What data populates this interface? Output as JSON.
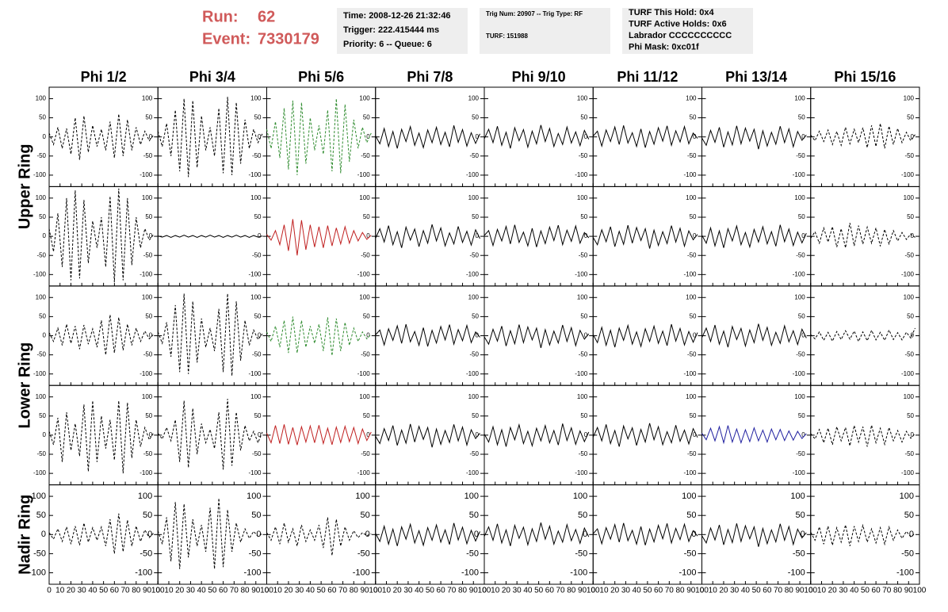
{
  "header": {
    "run_label": "Run:",
    "run": "62",
    "event_label": "Event:",
    "event": "7330179",
    "box1": [
      "Time: 2008-12-26 21:32:46",
      "Trigger: 222.415444 ms",
      "Priority: 6 -- Queue: 6"
    ],
    "box2": [
      "Trig Num: 20907 -- Trig Type: RF",
      "TURF: 151988"
    ],
    "box3": [
      "TURF This Hold: 0x4",
      "TURF Active Holds: 0x6",
      "Labrador CCCCCCCCCC",
      "Phi Mask: 0xc01f"
    ]
  },
  "columns": [
    "Phi 1/2",
    "Phi 3/4",
    "Phi 5/6",
    "Phi 7/8",
    "Phi 9/10",
    "Phi 11/12",
    "Phi 13/14",
    "Phi 15/16"
  ],
  "rings": [
    "Upper Ring",
    "Lower Ring",
    "Nadir Ring"
  ],
  "xlim": [
    0,
    100
  ],
  "ylim": [
    -130,
    130
  ],
  "xticks": [
    0,
    10,
    20,
    30,
    40,
    50,
    60,
    70,
    80,
    90,
    100
  ],
  "yticks": [
    -100,
    -50,
    0,
    50,
    100
  ],
  "x": [
    0,
    4,
    8,
    12,
    16,
    20,
    24,
    28,
    32,
    36,
    40,
    44,
    48,
    52,
    56,
    60,
    64,
    68,
    72,
    76,
    80,
    84,
    88,
    92,
    96
  ],
  "panels": [
    [
      {
        "color": "#000000",
        "dashed": true,
        "values": [
          10,
          -20,
          25,
          -30,
          22,
          -45,
          50,
          -60,
          55,
          -40,
          30,
          -25,
          20,
          -35,
          40,
          -55,
          60,
          -50,
          45,
          -35,
          25,
          -20,
          15,
          -10,
          5
        ]
      },
      {
        "color": "#000000",
        "dashed": true,
        "values": [
          15,
          -25,
          35,
          -50,
          70,
          -90,
          100,
          -105,
          95,
          -80,
          55,
          -35,
          25,
          -50,
          75,
          -95,
          105,
          -100,
          90,
          -70,
          45,
          -30,
          20,
          -15,
          8
        ]
      },
      {
        "color": "#2e8b2e",
        "dashed": true,
        "values": [
          20,
          -30,
          40,
          -55,
          75,
          -85,
          95,
          -100,
          90,
          -70,
          50,
          -35,
          30,
          -45,
          70,
          -90,
          100,
          -95,
          85,
          -65,
          45,
          -30,
          25,
          -15,
          10
        ]
      },
      {
        "color": "#000000",
        "dashed": false,
        "values": [
          3,
          -18,
          22,
          -25,
          14,
          -30,
          20,
          -12,
          27,
          -22,
          10,
          -28,
          18,
          -15,
          25,
          -20,
          12,
          -26,
          30,
          -14,
          19,
          -24,
          11,
          -17,
          8
        ]
      },
      {
        "color": "#000000",
        "dashed": false,
        "values": [
          -5,
          20,
          -15,
          28,
          -22,
          12,
          -30,
          24,
          -10,
          19,
          -27,
          15,
          -18,
          31,
          -12,
          22,
          -25,
          9,
          -20,
          26,
          -16,
          13,
          -23,
          17,
          -6
        ]
      },
      {
        "color": "#000000",
        "dashed": false,
        "values": [
          2,
          15,
          -24,
          18,
          -12,
          26,
          -20,
          30,
          -16,
          11,
          -25,
          21,
          -28,
          14,
          -19,
          24,
          -11,
          29,
          -22,
          16,
          -13,
          27,
          -18,
          10,
          -4
        ]
      },
      {
        "color": "#000000",
        "dashed": false,
        "values": [
          -3,
          -22,
          17,
          -14,
          25,
          -27,
          13,
          -21,
          29,
          -18,
          23,
          -11,
          20,
          -32,
          16,
          -24,
          12,
          -19,
          28,
          -15,
          21,
          -26,
          14,
          -9,
          5
        ]
      },
      {
        "color": "#000000",
        "dashed": true,
        "values": [
          5,
          -10,
          15,
          -12,
          18,
          -20,
          14,
          -22,
          25,
          -18,
          20,
          -15,
          24,
          -28,
          30,
          -25,
          35,
          -30,
          28,
          -20,
          22,
          -15,
          12,
          -10,
          6
        ]
      }
    ],
    [
      {
        "color": "#000000",
        "dashed": true,
        "values": [
          20,
          -40,
          60,
          -80,
          100,
          -115,
          120,
          -110,
          95,
          -70,
          40,
          -30,
          50,
          -80,
          105,
          -120,
          125,
          -115,
          100,
          -75,
          50,
          -30,
          20,
          -10,
          5
        ]
      },
      {
        "color": "#000000",
        "dashed": false,
        "values": [
          1,
          -2,
          2,
          -3,
          2,
          -2,
          3,
          -2,
          2,
          -3,
          2,
          -2,
          3,
          -2,
          2,
          -3,
          2,
          -2,
          3,
          -2,
          2,
          -3,
          2,
          -2,
          1
        ]
      },
      {
        "color": "#c02020",
        "dashed": false,
        "values": [
          5,
          -10,
          15,
          -22,
          30,
          -38,
          45,
          -50,
          42,
          -35,
          30,
          -28,
          25,
          -30,
          28,
          -25,
          22,
          -20,
          25,
          -18,
          15,
          -12,
          10,
          -8,
          3
        ]
      },
      {
        "color": "#000000",
        "dashed": false,
        "values": [
          -5,
          20,
          -15,
          28,
          -22,
          12,
          -30,
          24,
          -10,
          19,
          -27,
          15,
          -18,
          31,
          -12,
          22,
          -25,
          9,
          -20,
          26,
          -16,
          13,
          -23,
          17,
          -6
        ]
      },
      {
        "color": "#000000",
        "dashed": false,
        "values": [
          2,
          15,
          -24,
          18,
          -12,
          26,
          -20,
          30,
          -16,
          11,
          -25,
          21,
          -28,
          14,
          -19,
          24,
          -11,
          29,
          -22,
          16,
          -13,
          27,
          -18,
          10,
          -4
        ]
      },
      {
        "color": "#000000",
        "dashed": false,
        "values": [
          -3,
          -22,
          17,
          -14,
          25,
          -27,
          13,
          -21,
          29,
          -18,
          23,
          -11,
          20,
          -32,
          16,
          -24,
          12,
          -19,
          28,
          -15,
          21,
          -26,
          14,
          -9,
          5
        ]
      },
      {
        "color": "#000000",
        "dashed": false,
        "values": [
          3,
          -18,
          22,
          -25,
          14,
          -30,
          20,
          -12,
          27,
          -22,
          10,
          -28,
          18,
          -15,
          25,
          -20,
          12,
          -26,
          30,
          -14,
          19,
          -24,
          11,
          -17,
          8
        ]
      },
      {
        "color": "#000000",
        "dashed": true,
        "values": [
          -5,
          12,
          -18,
          22,
          -15,
          25,
          -28,
          20,
          -30,
          35,
          -25,
          28,
          -20,
          24,
          -18,
          22,
          -26,
          18,
          -20,
          15,
          -12,
          10,
          -8,
          6,
          -3
        ]
      }
    ],
    [
      {
        "color": "#000000",
        "dashed": true,
        "values": [
          8,
          -15,
          20,
          -25,
          30,
          -20,
          25,
          -35,
          28,
          -22,
          18,
          -30,
          40,
          -50,
          55,
          -45,
          48,
          -38,
          30,
          -25,
          20,
          -15,
          12,
          -8,
          4
        ]
      },
      {
        "color": "#000000",
        "dashed": true,
        "values": [
          10,
          -20,
          35,
          -55,
          80,
          -95,
          110,
          -100,
          90,
          -70,
          45,
          -30,
          20,
          -40,
          70,
          -95,
          110,
          -105,
          90,
          -65,
          40,
          -25,
          15,
          -10,
          5
        ]
      },
      {
        "color": "#2e8b2e",
        "dashed": true,
        "values": [
          10,
          -15,
          25,
          -30,
          40,
          -45,
          50,
          -45,
          40,
          -30,
          25,
          -20,
          30,
          -40,
          48,
          -52,
          45,
          -40,
          35,
          -25,
          20,
          -15,
          10,
          -8,
          4
        ]
      },
      {
        "color": "#000000",
        "dashed": false,
        "values": [
          2,
          15,
          -24,
          18,
          -12,
          26,
          -20,
          30,
          -16,
          11,
          -25,
          21,
          -28,
          14,
          -19,
          24,
          -11,
          29,
          -22,
          16,
          -13,
          27,
          -18,
          10,
          -4
        ]
      },
      {
        "color": "#000000",
        "dashed": false,
        "values": [
          -3,
          -22,
          17,
          -14,
          25,
          -27,
          13,
          -21,
          29,
          -18,
          23,
          -11,
          20,
          -32,
          16,
          -24,
          12,
          -19,
          28,
          -15,
          21,
          -26,
          14,
          -9,
          5
        ]
      },
      {
        "color": "#000000",
        "dashed": false,
        "values": [
          3,
          -18,
          22,
          -25,
          14,
          -30,
          20,
          -12,
          27,
          -22,
          10,
          -28,
          18,
          -15,
          25,
          -20,
          12,
          -26,
          30,
          -14,
          19,
          -24,
          11,
          -17,
          8
        ]
      },
      {
        "color": "#000000",
        "dashed": false,
        "values": [
          -5,
          20,
          -15,
          28,
          -22,
          12,
          -30,
          24,
          -10,
          19,
          -27,
          15,
          -18,
          31,
          -12,
          22,
          -25,
          9,
          -20,
          26,
          -16,
          13,
          -23,
          17,
          -6
        ]
      },
      {
        "color": "#000000",
        "dashed": true,
        "values": [
          3,
          -8,
          10,
          -12,
          9,
          -14,
          11,
          -10,
          13,
          -9,
          12,
          -15,
          10,
          -13,
          14,
          -11,
          9,
          -12,
          15,
          -10,
          8,
          -11,
          9,
          -6,
          20
        ]
      }
    ],
    [
      {
        "color": "#000000",
        "dashed": true,
        "values": [
          10,
          -25,
          45,
          -70,
          60,
          -40,
          30,
          -55,
          80,
          -95,
          90,
          -70,
          50,
          -35,
          40,
          -65,
          90,
          -100,
          85,
          -60,
          40,
          -30,
          20,
          -12,
          6
        ]
      },
      {
        "color": "#000000",
        "dashed": true,
        "values": [
          5,
          -10,
          20,
          -15,
          40,
          -70,
          90,
          -85,
          70,
          -50,
          30,
          -20,
          15,
          -35,
          60,
          -90,
          95,
          -80,
          60,
          -40,
          25,
          -15,
          10,
          -20,
          8
        ]
      },
      {
        "color": "#c02020",
        "dashed": false,
        "values": [
          5,
          -20,
          25,
          -22,
          28,
          -24,
          20,
          -26,
          22,
          -18,
          24,
          -20,
          26,
          -22,
          18,
          -25,
          21,
          -19,
          23,
          -17,
          20,
          -22,
          16,
          -14,
          8
        ]
      },
      {
        "color": "#000000",
        "dashed": false,
        "values": [
          -3,
          -22,
          17,
          -14,
          25,
          -27,
          13,
          -21,
          29,
          -18,
          23,
          -11,
          20,
          -32,
          16,
          -24,
          12,
          -19,
          28,
          -15,
          21,
          -26,
          14,
          -9,
          5
        ]
      },
      {
        "color": "#000000",
        "dashed": false,
        "values": [
          3,
          -18,
          22,
          -25,
          14,
          -30,
          20,
          -12,
          27,
          -22,
          10,
          -28,
          18,
          -15,
          25,
          -20,
          12,
          -26,
          30,
          -14,
          19,
          -24,
          11,
          -17,
          8
        ]
      },
      {
        "color": "#000000",
        "dashed": false,
        "values": [
          -5,
          20,
          -15,
          28,
          -22,
          12,
          -30,
          24,
          -10,
          19,
          -27,
          15,
          -18,
          31,
          -12,
          22,
          -25,
          9,
          -20,
          26,
          -16,
          13,
          -23,
          17,
          -6
        ]
      },
      {
        "color": "#2020a0",
        "dashed": false,
        "values": [
          5,
          -12,
          18,
          -15,
          22,
          -20,
          25,
          -18,
          16,
          -20,
          14,
          -17,
          19,
          -15,
          13,
          -18,
          16,
          -12,
          15,
          -14,
          11,
          -13,
          10,
          -9,
          4
        ]
      },
      {
        "color": "#000000",
        "dashed": true,
        "values": [
          4,
          -10,
          15,
          -20,
          18,
          -25,
          22,
          -15,
          20,
          -28,
          25,
          -18,
          22,
          -30,
          26,
          -20,
          18,
          -24,
          20,
          -15,
          12,
          -18,
          10,
          -8,
          4
        ]
      }
    ],
    [
      {
        "color": "#000000",
        "dashed": true,
        "values": [
          5,
          -12,
          15,
          -18,
          20,
          -25,
          22,
          -28,
          30,
          -20,
          18,
          -15,
          20,
          -30,
          40,
          -50,
          55,
          -45,
          38,
          -30,
          22,
          -18,
          12,
          -8,
          4
        ]
      },
      {
        "color": "#000000",
        "dashed": true,
        "values": [
          10,
          -25,
          45,
          -70,
          85,
          -90,
          80,
          -60,
          40,
          -30,
          25,
          -45,
          70,
          -90,
          95,
          -85,
          65,
          -45,
          30,
          -20,
          15,
          -10,
          8,
          -5,
          3
        ]
      },
      {
        "color": "#000000",
        "dashed": true,
        "values": [
          5,
          -15,
          20,
          -25,
          30,
          -20,
          15,
          -30,
          25,
          -18,
          12,
          -15,
          25,
          -35,
          45,
          -55,
          40,
          -30,
          20,
          -15,
          10,
          -8,
          5,
          -3,
          2
        ]
      },
      {
        "color": "#000000",
        "dashed": false,
        "values": [
          3,
          -18,
          22,
          -25,
          14,
          -30,
          20,
          -12,
          27,
          -22,
          10,
          -28,
          18,
          -15,
          25,
          -20,
          12,
          -26,
          30,
          -14,
          19,
          -24,
          11,
          -17,
          8
        ]
      },
      {
        "color": "#000000",
        "dashed": false,
        "values": [
          -5,
          20,
          -15,
          28,
          -22,
          12,
          -30,
          24,
          -10,
          19,
          -27,
          15,
          -18,
          31,
          -12,
          22,
          -25,
          9,
          -20,
          26,
          -16,
          13,
          -23,
          17,
          -6
        ]
      },
      {
        "color": "#000000",
        "dashed": false,
        "values": [
          2,
          15,
          -24,
          18,
          -12,
          26,
          -20,
          30,
          -16,
          11,
          -25,
          21,
          -28,
          14,
          -19,
          24,
          -11,
          29,
          -22,
          16,
          -13,
          27,
          -18,
          10,
          -4
        ]
      },
      {
        "color": "#000000",
        "dashed": false,
        "values": [
          -3,
          -22,
          17,
          -14,
          25,
          -27,
          13,
          -21,
          29,
          -18,
          23,
          -11,
          20,
          -32,
          16,
          -24,
          12,
          -19,
          28,
          -15,
          21,
          -26,
          14,
          -9,
          5
        ]
      },
      {
        "color": "#000000",
        "dashed": true,
        "values": [
          6,
          -15,
          20,
          -25,
          22,
          -28,
          18,
          -20,
          25,
          -30,
          22,
          -18,
          24,
          -20,
          15,
          -22,
          18,
          -25,
          20,
          -15,
          12,
          -10,
          8,
          -6,
          3
        ]
      }
    ]
  ]
}
